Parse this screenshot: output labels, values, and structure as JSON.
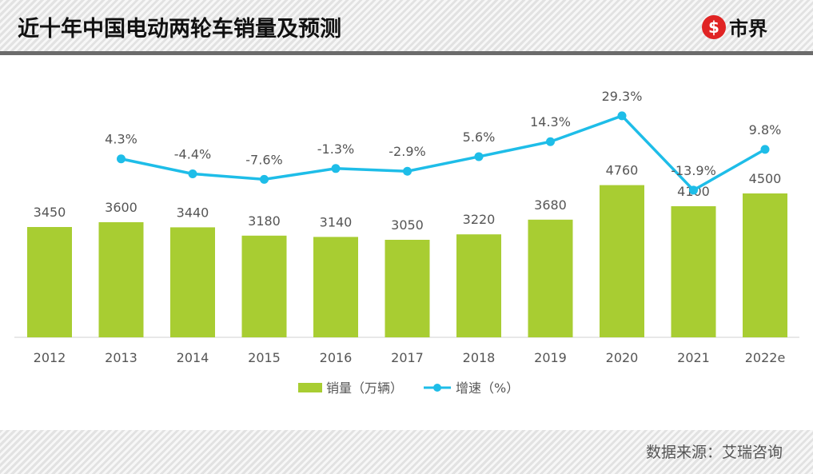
{
  "header": {
    "title": "近十年中国电动两轮车销量及预测",
    "logo_text": "市界",
    "logo_icon": "s-circle-icon"
  },
  "footer": {
    "source": "数据来源：艾瑞咨询"
  },
  "colors": {
    "bar": "#a8cd32",
    "line": "#1ebde8"
  },
  "chart_data": {
    "type": "bar+line",
    "categories": [
      "2012",
      "2013",
      "2014",
      "2015",
      "2016",
      "2017",
      "2018",
      "2019",
      "2020",
      "2021",
      "2022e"
    ],
    "series": [
      {
        "name": "销量（万辆）",
        "type": "bar",
        "values": [
          3450,
          3600,
          3440,
          3180,
          3140,
          3050,
          3220,
          3680,
          4760,
          4100,
          4500
        ],
        "labels": [
          "3450",
          "3600",
          "3440",
          "3180",
          "3140",
          "3050",
          "3220",
          "3680",
          "4760",
          "4100",
          "4500"
        ]
      },
      {
        "name": "增速（%）",
        "type": "line",
        "values": [
          null,
          4.3,
          -4.4,
          -7.6,
          -1.3,
          -2.9,
          5.6,
          14.3,
          29.3,
          -13.9,
          9.8
        ],
        "labels": [
          "",
          "4.3%",
          "-4.4%",
          "-7.6%",
          "-1.3%",
          "-2.9%",
          "5.6%",
          "14.3%",
          "29.3%",
          "-13.9%",
          "9.8%"
        ]
      }
    ],
    "legend": "bottom",
    "grid": false
  }
}
